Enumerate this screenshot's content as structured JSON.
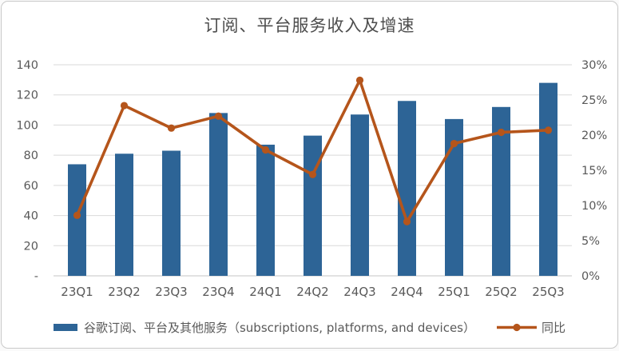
{
  "chart_data": {
    "type": "combo-bar-line",
    "title": "订阅、平台服务收入及增速",
    "categories": [
      "23Q1",
      "23Q2",
      "23Q3",
      "23Q4",
      "24Q1",
      "24Q2",
      "24Q3",
      "24Q4",
      "25Q1",
      "25Q2",
      "25Q3"
    ],
    "series": [
      {
        "name": "谷歌订阅、平台及其他服务（subscriptions, platforms, and devices）",
        "type": "bar",
        "axis": "left",
        "values": [
          74,
          81,
          83,
          108,
          87,
          93,
          107,
          116,
          104,
          112,
          128
        ]
      },
      {
        "name": "同比",
        "type": "line",
        "axis": "right",
        "values": [
          8.6,
          24.2,
          21.0,
          22.7,
          17.9,
          14.4,
          27.8,
          7.7,
          18.8,
          20.4,
          20.7
        ]
      }
    ],
    "left_axis": {
      "min": 0,
      "max": 140,
      "ticks": [
        {
          "label": "140",
          "value": 140
        },
        {
          "label": "120",
          "value": 120
        },
        {
          "label": "100",
          "value": 100
        },
        {
          "label": "80",
          "value": 80
        },
        {
          "label": "60",
          "value": 60
        },
        {
          "label": "40",
          "value": 40
        },
        {
          "label": "20",
          "value": 20
        },
        {
          "label": "-",
          "value": 0
        }
      ]
    },
    "right_axis": {
      "min": 0,
      "max": 30,
      "ticks": [
        {
          "label": "30%",
          "value": 30
        },
        {
          "label": "25%",
          "value": 25
        },
        {
          "label": "20%",
          "value": 20
        },
        {
          "label": "15%",
          "value": 15
        },
        {
          "label": "10%",
          "value": 10
        },
        {
          "label": "5%",
          "value": 5
        },
        {
          "label": "0%",
          "value": 0
        }
      ]
    },
    "grid": true,
    "legend_position": "bottom",
    "colors": {
      "bar": "#2D6496",
      "line": "#B5551B",
      "grid": "#D9D9D9",
      "axis_line": "#C6C6C6",
      "tick_text": "#595959",
      "title_text": "#4D4D4D",
      "card_border": "#C9C9C9"
    }
  }
}
